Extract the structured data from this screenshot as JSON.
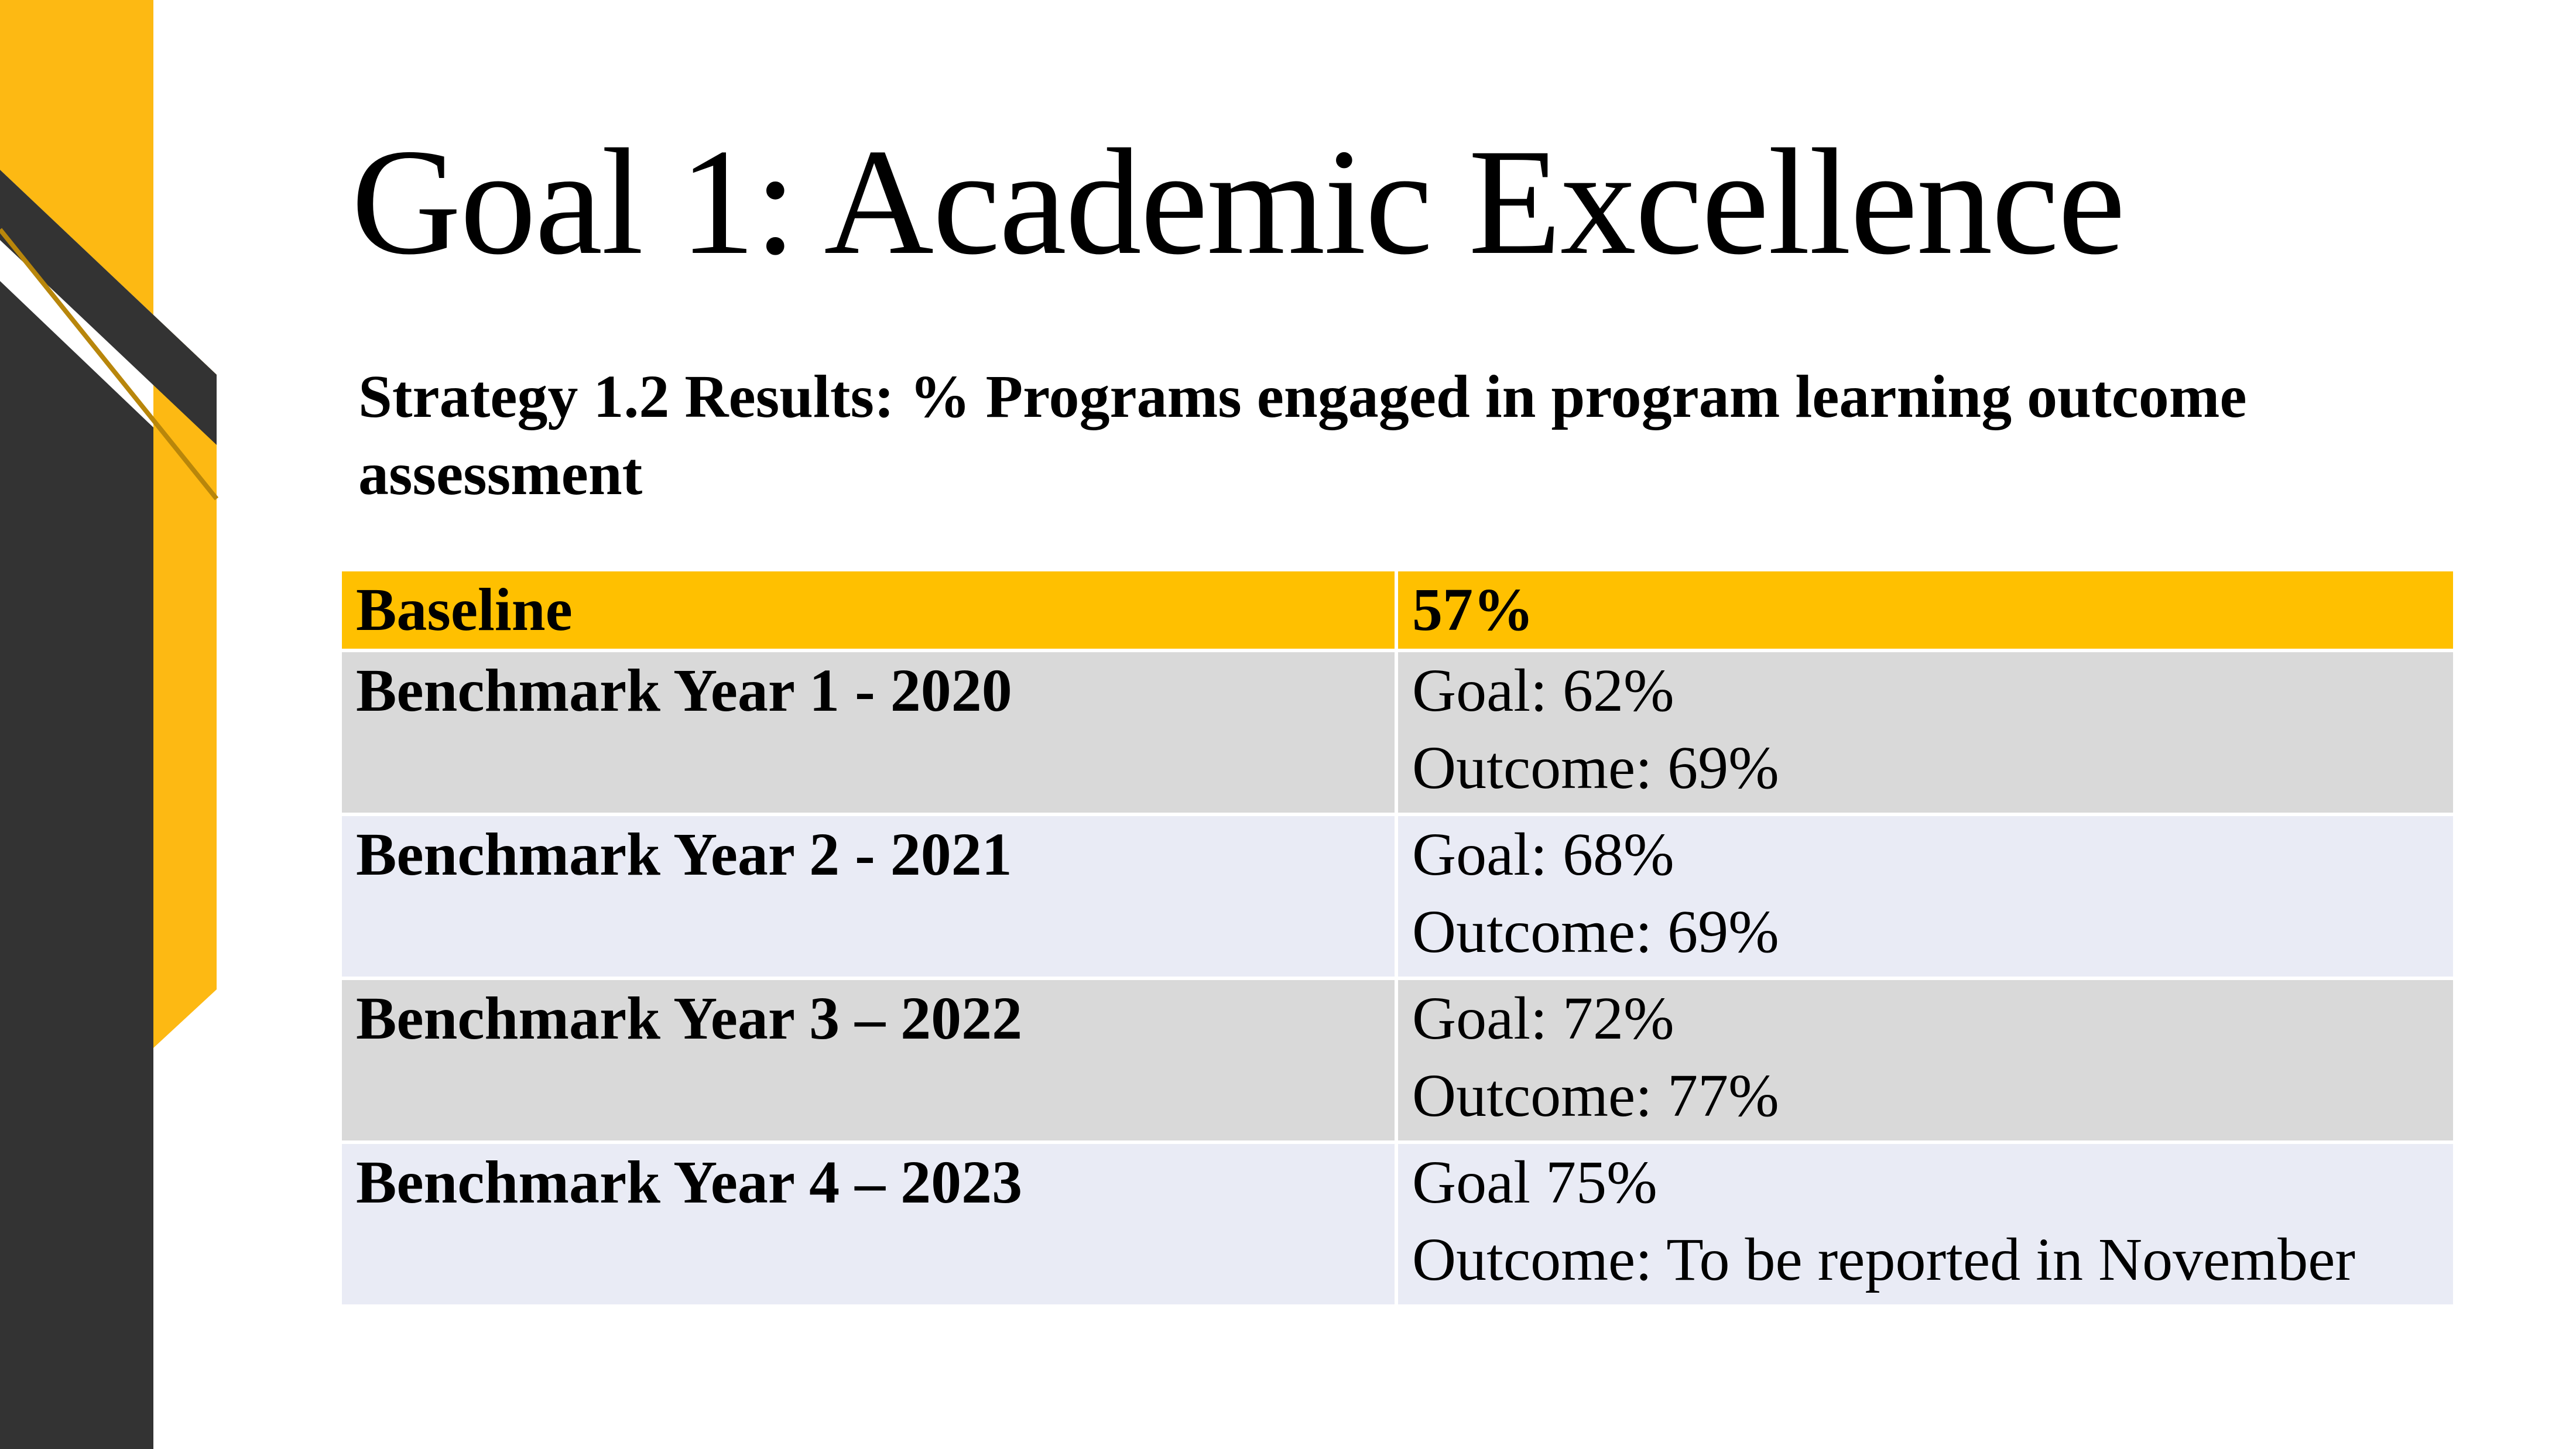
{
  "slide": {
    "title": "Goal 1:  Academic Excellence",
    "subtitle": "Strategy 1.2 Results:  % Programs engaged in program learning outcome assessment"
  },
  "colors": {
    "accent_yellow": "#FFC000",
    "decor_dark": "#333333",
    "decor_yellow": "#FDB913",
    "row_gray": "#D9D9D9",
    "row_lavender": "#E9EBF5"
  },
  "table": {
    "header": {
      "label": "Baseline",
      "value": "57%"
    },
    "rows": [
      {
        "label": "Benchmark Year 1 - 2020",
        "goal": "Goal: 62%",
        "outcome": "Outcome: 69%"
      },
      {
        "label": "Benchmark Year 2 - 2021",
        "goal": "Goal: 68%",
        "outcome": "Outcome: 69%"
      },
      {
        "label": "Benchmark Year 3 – 2022",
        "goal": "Goal:  72%",
        "outcome": "Outcome: 77%"
      },
      {
        "label": "Benchmark Year 4 – 2023",
        "goal": "Goal 75%",
        "outcome": "Outcome: To be reported in November"
      }
    ]
  }
}
